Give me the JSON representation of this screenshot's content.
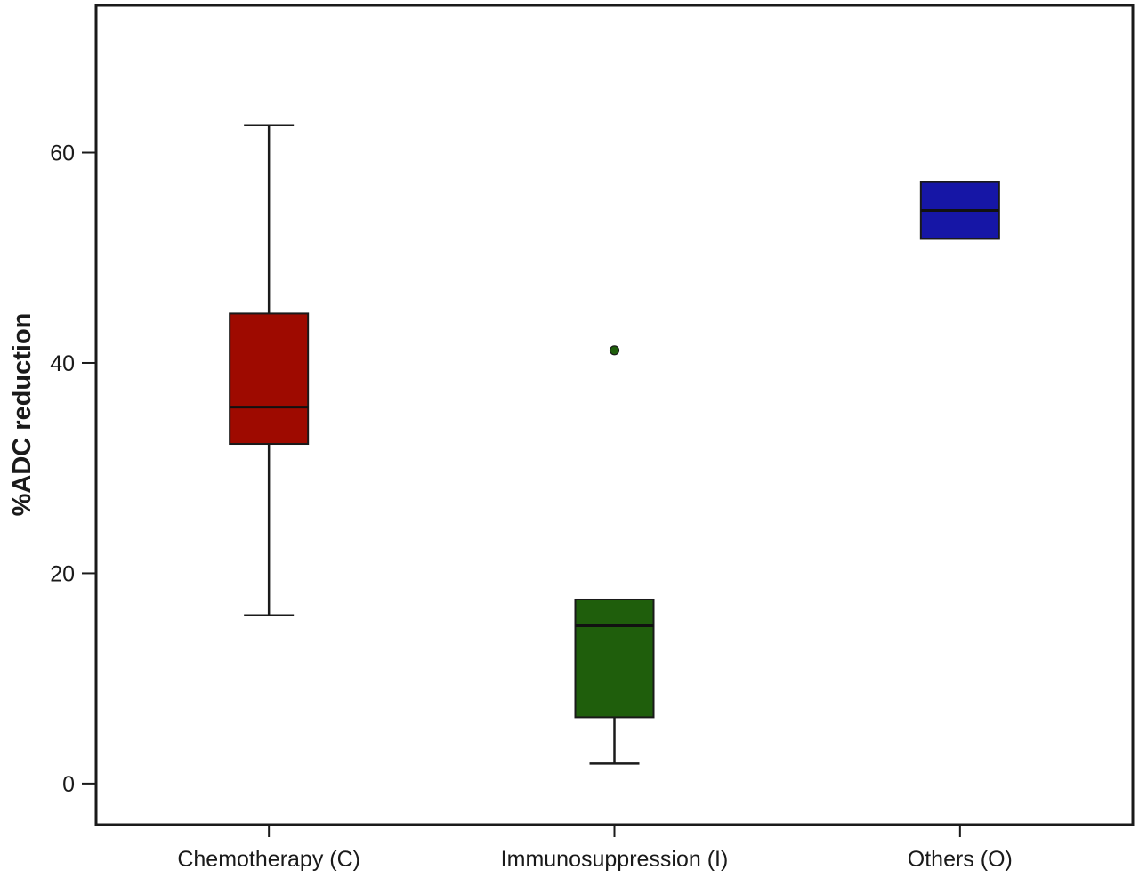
{
  "chart_data": {
    "type": "boxplot",
    "title": "",
    "xlabel": "",
    "ylabel": "%ADC reduction",
    "ylim": [
      -3.9,
      74
    ],
    "yticks": [
      0,
      20,
      40,
      60
    ],
    "grid": false,
    "categories": [
      "Chemotherapy (C)",
      "Immunosuppression (I)",
      "Others (O)"
    ],
    "boxes": [
      {
        "category": "Chemotherapy (C)",
        "whisker_low": 16.0,
        "q1": 32.3,
        "median": 35.8,
        "q3": 44.7,
        "whisker_high": 62.6,
        "outliers": [],
        "color": "#9e0a00"
      },
      {
        "category": "Immunosuppression (I)",
        "whisker_low": 1.9,
        "q1": 6.3,
        "median": 15.0,
        "q3": 17.5,
        "whisker_high": 17.5,
        "outliers": [
          41.2
        ],
        "color": "#1f5e0c"
      },
      {
        "category": "Others (O)",
        "whisker_low": 51.8,
        "q1": 51.8,
        "median": 54.5,
        "q3": 57.2,
        "whisker_high": 57.2,
        "outliers": [],
        "color": "#1616a6"
      }
    ]
  }
}
